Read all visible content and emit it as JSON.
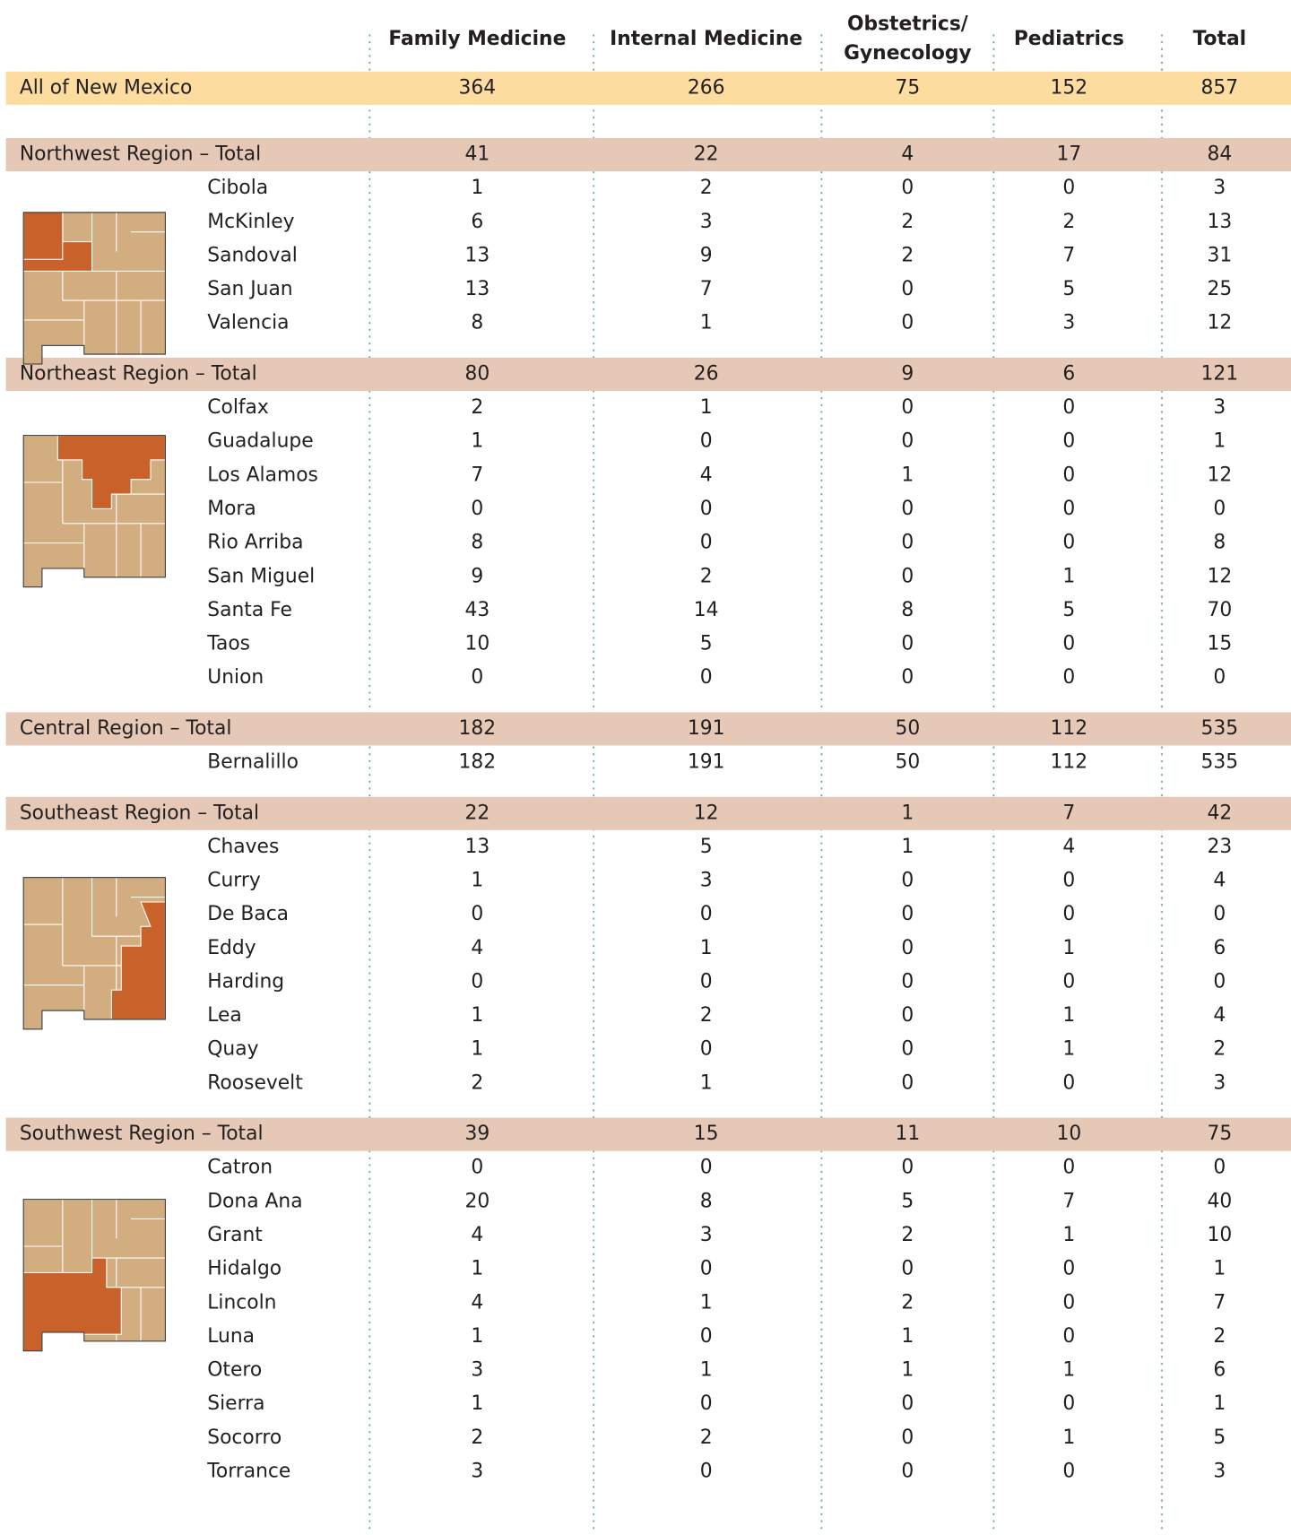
{
  "table": {
    "columns": [
      "Family Medicine",
      "Internal Medicine",
      "Obstetrics/",
      "Gynecology",
      "Pediatrics",
      "Total"
    ],
    "all": {
      "label": "All of New Mexico",
      "values": [
        364,
        266,
        75,
        152,
        857
      ]
    },
    "regions": [
      {
        "label": "Northwest Region – Total",
        "values": [
          41,
          22,
          4,
          17,
          84
        ],
        "counties": [
          {
            "name": "Cibola",
            "values": [
              1,
              2,
              0,
              0,
              3
            ]
          },
          {
            "name": "McKinley",
            "values": [
              6,
              3,
              2,
              2,
              13
            ]
          },
          {
            "name": "Sandoval",
            "values": [
              13,
              9,
              2,
              7,
              31
            ]
          },
          {
            "name": "San Juan",
            "values": [
              13,
              7,
              0,
              5,
              25
            ]
          },
          {
            "name": "Valencia",
            "values": [
              8,
              1,
              0,
              3,
              12
            ]
          }
        ]
      },
      {
        "label": "Northeast Region – Total",
        "values": [
          80,
          26,
          9,
          6,
          121
        ],
        "counties": [
          {
            "name": "Colfax",
            "values": [
              2,
              1,
              0,
              0,
              3
            ]
          },
          {
            "name": "Guadalupe",
            "values": [
              1,
              0,
              0,
              0,
              1
            ]
          },
          {
            "name": "Los Alamos",
            "values": [
              7,
              4,
              1,
              0,
              12
            ]
          },
          {
            "name": "Mora",
            "values": [
              0,
              0,
              0,
              0,
              0
            ]
          },
          {
            "name": "Rio Arriba",
            "values": [
              8,
              0,
              0,
              0,
              8
            ]
          },
          {
            "name": "San Miguel",
            "values": [
              9,
              2,
              0,
              1,
              12
            ]
          },
          {
            "name": "Santa Fe",
            "values": [
              43,
              14,
              8,
              5,
              70
            ]
          },
          {
            "name": "Taos",
            "values": [
              10,
              5,
              0,
              0,
              15
            ]
          },
          {
            "name": "Union",
            "values": [
              0,
              0,
              0,
              0,
              0
            ]
          }
        ]
      },
      {
        "label": "Central Region – Total",
        "values": [
          182,
          191,
          50,
          112,
          535
        ],
        "counties": [
          {
            "name": "Bernalillo",
            "values": [
              182,
              191,
              50,
              112,
              535
            ]
          }
        ]
      },
      {
        "label": "Southeast Region – Total",
        "values": [
          22,
          12,
          1,
          7,
          42
        ],
        "counties": [
          {
            "name": "Chaves",
            "values": [
              13,
              5,
              1,
              4,
              23
            ]
          },
          {
            "name": "Curry",
            "values": [
              1,
              3,
              0,
              0,
              4
            ]
          },
          {
            "name": "De Baca",
            "values": [
              0,
              0,
              0,
              0,
              0
            ]
          },
          {
            "name": "Eddy",
            "values": [
              4,
              1,
              0,
              1,
              6
            ]
          },
          {
            "name": "Harding",
            "values": [
              0,
              0,
              0,
              0,
              0
            ]
          },
          {
            "name": "Lea",
            "values": [
              1,
              2,
              0,
              1,
              4
            ]
          },
          {
            "name": "Quay",
            "values": [
              1,
              0,
              0,
              1,
              2
            ]
          },
          {
            "name": "Roosevelt",
            "values": [
              2,
              1,
              0,
              0,
              3
            ]
          }
        ]
      },
      {
        "label": "Southwest Region – Total",
        "values": [
          39,
          15,
          11,
          10,
          75
        ],
        "counties": [
          {
            "name": "Catron",
            "values": [
              0,
              0,
              0,
              0,
              0
            ]
          },
          {
            "name": "Dona Ana",
            "values": [
              20,
              8,
              5,
              7,
              40
            ]
          },
          {
            "name": "Grant",
            "values": [
              4,
              3,
              2,
              1,
              10
            ]
          },
          {
            "name": "Hidalgo",
            "values": [
              1,
              0,
              0,
              0,
              1
            ]
          },
          {
            "name": "Lincoln",
            "values": [
              4,
              1,
              2,
              0,
              7
            ]
          },
          {
            "name": "Luna",
            "values": [
              1,
              0,
              1,
              0,
              2
            ]
          },
          {
            "name": "Otero",
            "values": [
              3,
              1,
              1,
              1,
              6
            ]
          },
          {
            "name": "Sierra",
            "values": [
              1,
              0,
              0,
              0,
              1
            ]
          },
          {
            "name": "Socorro",
            "values": [
              2,
              2,
              0,
              1,
              5
            ]
          },
          {
            "name": "Torrance",
            "values": [
              3,
              0,
              0,
              0,
              3
            ]
          }
        ]
      }
    ]
  }
}
